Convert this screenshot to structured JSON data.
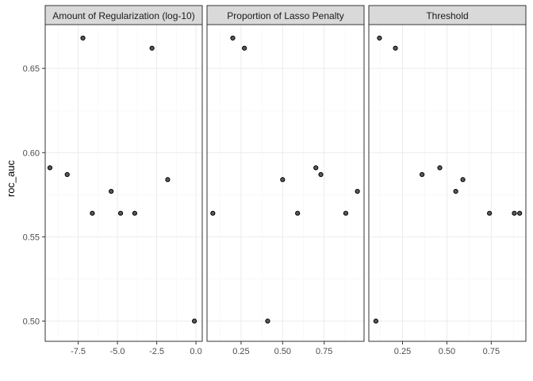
{
  "chart_data": {
    "type": "scatter",
    "ylabel": "roc_auc",
    "ylim": [
      0.488,
      0.676
    ],
    "yticks": [
      0.5,
      0.55,
      0.6,
      0.65
    ],
    "ytick_labels": [
      "0.50",
      "0.55",
      "0.60",
      "0.65"
    ],
    "grid": true,
    "panels": [
      {
        "title": "Amount of Regularization (log-10)",
        "xlim": [
          -9.6,
          0.4
        ],
        "xticks": [
          -7.5,
          -5.0,
          -2.5,
          0.0
        ],
        "xtick_labels": [
          "-7.5",
          "-5.0",
          "-2.5",
          "0.0"
        ],
        "points": [
          {
            "x": -9.3,
            "y": 0.591
          },
          {
            "x": -8.2,
            "y": 0.587
          },
          {
            "x": -7.2,
            "y": 0.668
          },
          {
            "x": -6.6,
            "y": 0.564
          },
          {
            "x": -5.4,
            "y": 0.577
          },
          {
            "x": -4.8,
            "y": 0.564
          },
          {
            "x": -3.9,
            "y": 0.564
          },
          {
            "x": -2.8,
            "y": 0.662
          },
          {
            "x": -1.8,
            "y": 0.584
          },
          {
            "x": -0.1,
            "y": 0.5
          }
        ]
      },
      {
        "title": "Proportion of Lasso Penalty",
        "xlim": [
          0.045,
          0.99
        ],
        "xticks": [
          0.25,
          0.5,
          0.75
        ],
        "xtick_labels": [
          "0.25",
          "0.50",
          "0.75"
        ],
        "points": [
          {
            "x": 0.08,
            "y": 0.564
          },
          {
            "x": 0.2,
            "y": 0.668
          },
          {
            "x": 0.27,
            "y": 0.662
          },
          {
            "x": 0.41,
            "y": 0.5
          },
          {
            "x": 0.5,
            "y": 0.584
          },
          {
            "x": 0.59,
            "y": 0.564
          },
          {
            "x": 0.7,
            "y": 0.591
          },
          {
            "x": 0.73,
            "y": 0.587
          },
          {
            "x": 0.88,
            "y": 0.564
          },
          {
            "x": 0.95,
            "y": 0.577
          }
        ]
      },
      {
        "title": "Threshold",
        "xlim": [
          0.06,
          0.945
        ],
        "xticks": [
          0.25,
          0.5,
          0.75
        ],
        "xtick_labels": [
          "0.25",
          "0.50",
          "0.75"
        ],
        "points": [
          {
            "x": 0.1,
            "y": 0.5
          },
          {
            "x": 0.12,
            "y": 0.668
          },
          {
            "x": 0.21,
            "y": 0.662
          },
          {
            "x": 0.36,
            "y": 0.587
          },
          {
            "x": 0.46,
            "y": 0.591
          },
          {
            "x": 0.55,
            "y": 0.577
          },
          {
            "x": 0.59,
            "y": 0.584
          },
          {
            "x": 0.74,
            "y": 0.564
          },
          {
            "x": 0.88,
            "y": 0.564
          },
          {
            "x": 0.91,
            "y": 0.564
          }
        ]
      }
    ]
  }
}
